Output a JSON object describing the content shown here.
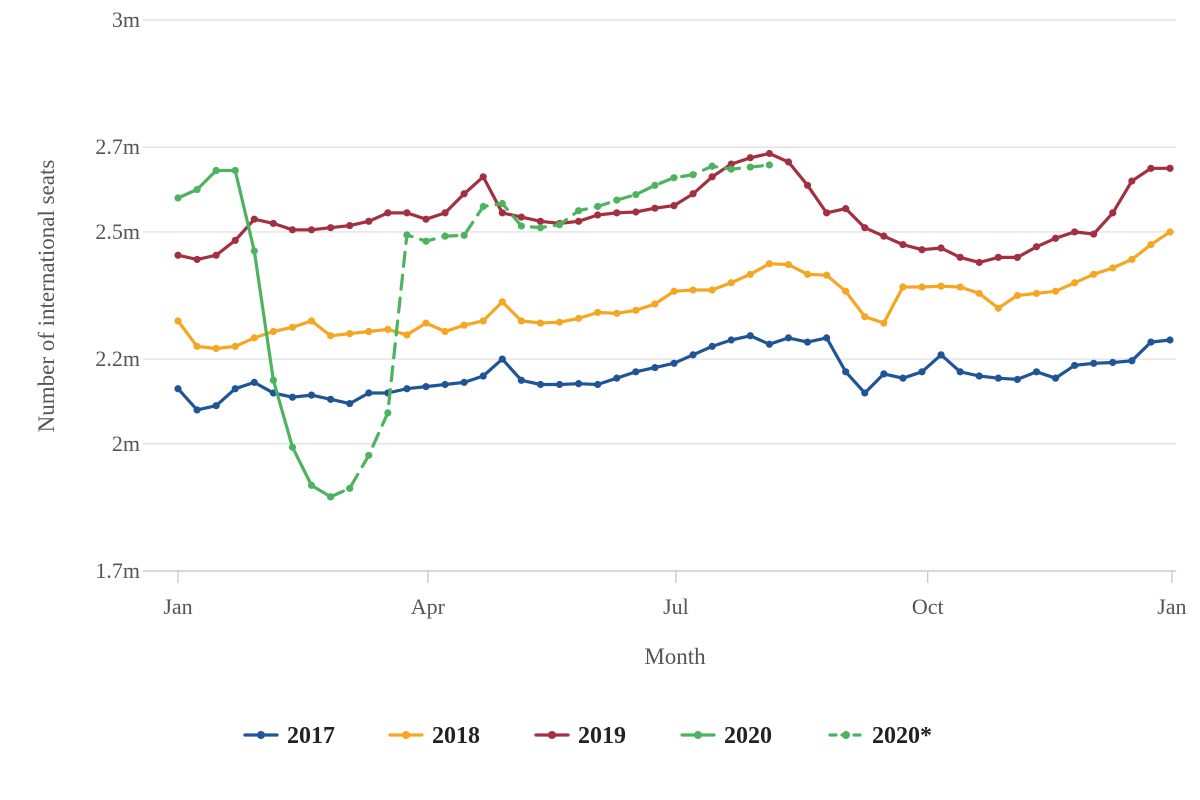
{
  "chart_data": {
    "type": "line",
    "title": "",
    "xlabel": "Month",
    "ylabel": "Number of international seats",
    "x_unit": "week",
    "xlim": [
      1,
      53
    ],
    "ylim": [
      1.7,
      3.0
    ],
    "y_ticks": [
      {
        "value": 1.7,
        "label": "1.7m"
      },
      {
        "value": 2.0,
        "label": "2m"
      },
      {
        "value": 2.2,
        "label": "2.2m"
      },
      {
        "value": 2.5,
        "label": "2.5m"
      },
      {
        "value": 2.7,
        "label": "2.7m"
      },
      {
        "value": 3.0,
        "label": "3m"
      }
    ],
    "x_ticks": [
      {
        "value": 1,
        "label": "Jan"
      },
      {
        "value": 14.1,
        "label": "Apr"
      },
      {
        "value": 27.1,
        "label": "Jul"
      },
      {
        "value": 40.3,
        "label": "Oct"
      },
      {
        "value": 53.1,
        "label": "Jan"
      }
    ],
    "grid": true,
    "legend_position": "bottom",
    "colors": {
      "2017": "#1f5597",
      "2018": "#f5a623",
      "2019": "#a33040",
      "2020": "#4db35f",
      "2020*": "#4db35f"
    },
    "series": [
      {
        "name": "2017",
        "dashed": false,
        "x": [
          1,
          2,
          3,
          4,
          5,
          6,
          7,
          8,
          9,
          10,
          11,
          12,
          13,
          14,
          15,
          16,
          17,
          18,
          19,
          20,
          21,
          22,
          23,
          24,
          25,
          26,
          27,
          28,
          29,
          30,
          31,
          32,
          33,
          34,
          35,
          36,
          37,
          38,
          39,
          40,
          41,
          42,
          43,
          44,
          45,
          46,
          47,
          48,
          49,
          50,
          51,
          52,
          53
        ],
        "values": [
          2.13,
          2.08,
          2.09,
          2.13,
          2.145,
          2.12,
          2.11,
          2.115,
          2.105,
          2.095,
          2.12,
          2.12,
          2.13,
          2.135,
          2.14,
          2.145,
          2.16,
          2.2,
          2.15,
          2.14,
          2.14,
          2.142,
          2.14,
          2.155,
          2.17,
          2.18,
          2.19,
          2.21,
          2.23,
          2.245,
          2.255,
          2.235,
          2.25,
          2.24,
          2.25,
          2.17,
          2.12,
          2.165,
          2.155,
          2.17,
          2.21,
          2.17,
          2.16,
          2.155,
          2.152,
          2.17,
          2.155,
          2.185,
          2.19,
          2.192,
          2.196,
          2.24,
          2.245
        ]
      },
      {
        "name": "2018",
        "dashed": false,
        "x": [
          1,
          2,
          3,
          4,
          5,
          6,
          7,
          8,
          9,
          10,
          11,
          12,
          13,
          14,
          15,
          16,
          17,
          18,
          19,
          20,
          21,
          22,
          23,
          24,
          25,
          26,
          27,
          28,
          29,
          30,
          31,
          32,
          33,
          34,
          35,
          36,
          37,
          38,
          39,
          40,
          41,
          42,
          43,
          44,
          45,
          46,
          47,
          48,
          49,
          50,
          51,
          52,
          53
        ],
        "values": [
          2.29,
          2.23,
          2.225,
          2.23,
          2.25,
          2.265,
          2.275,
          2.29,
          2.255,
          2.26,
          2.265,
          2.27,
          2.257,
          2.285,
          2.265,
          2.28,
          2.29,
          2.335,
          2.29,
          2.285,
          2.287,
          2.296,
          2.31,
          2.308,
          2.315,
          2.33,
          2.36,
          2.363,
          2.363,
          2.38,
          2.4,
          2.425,
          2.423,
          2.4,
          2.398,
          2.36,
          2.3,
          2.285,
          2.37,
          2.37,
          2.372,
          2.37,
          2.355,
          2.32,
          2.35,
          2.355,
          2.36,
          2.38,
          2.4,
          2.415,
          2.435,
          2.47,
          2.5
        ]
      },
      {
        "name": "2019",
        "dashed": false,
        "x": [
          1,
          2,
          3,
          4,
          5,
          6,
          7,
          8,
          9,
          10,
          11,
          12,
          13,
          14,
          15,
          16,
          17,
          18,
          19,
          20,
          21,
          22,
          23,
          24,
          25,
          26,
          27,
          28,
          29,
          30,
          31,
          32,
          33,
          34,
          35,
          36,
          37,
          38,
          39,
          40,
          41,
          42,
          43,
          44,
          45,
          46,
          47,
          48,
          49,
          50,
          51,
          52,
          53
        ],
        "values": [
          2.445,
          2.435,
          2.445,
          2.48,
          2.53,
          2.52,
          2.505,
          2.505,
          2.51,
          2.515,
          2.525,
          2.545,
          2.545,
          2.53,
          2.545,
          2.59,
          2.63,
          2.545,
          2.535,
          2.525,
          2.52,
          2.525,
          2.54,
          2.545,
          2.547,
          2.556,
          2.562,
          2.59,
          2.63,
          2.66,
          2.675,
          2.685,
          2.665,
          2.61,
          2.545,
          2.555,
          2.51,
          2.49,
          2.47,
          2.458,
          2.462,
          2.44,
          2.428,
          2.44,
          2.44,
          2.465,
          2.485,
          2.5,
          2.495,
          2.545,
          2.62,
          2.65,
          2.65
        ]
      },
      {
        "name": "2020",
        "dashed": false,
        "x": [
          1,
          2,
          3,
          4,
          5,
          6,
          7,
          8,
          9
        ],
        "values": [
          2.58,
          2.6,
          2.645,
          2.645,
          2.455,
          2.15,
          1.992,
          1.902,
          1.875
        ]
      },
      {
        "name": "2020*",
        "dashed": true,
        "x": [
          9,
          10,
          11,
          12,
          13,
          14,
          15,
          16,
          17,
          18,
          19,
          20,
          21,
          22,
          23,
          24,
          25,
          26,
          27,
          28,
          29,
          30,
          31,
          32
        ],
        "values": [
          1.875,
          1.895,
          1.973,
          2.073,
          2.493,
          2.478,
          2.49,
          2.492,
          2.56,
          2.567,
          2.514,
          2.51,
          2.517,
          2.55,
          2.56,
          2.575,
          2.588,
          2.61,
          2.628,
          2.635,
          2.655,
          2.648,
          2.653,
          2.658
        ]
      }
    ]
  }
}
